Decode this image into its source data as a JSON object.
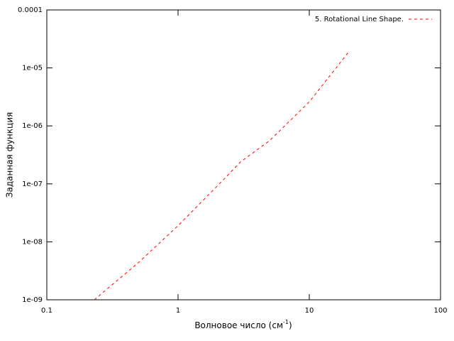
{
  "chart_data": {
    "type": "line",
    "xlabel": {
      "text": "Волновое число (см",
      "sup": "-1",
      "end": ")"
    },
    "ylabel": "Заданная функция",
    "x": [
      0.23,
      0.5,
      1,
      2,
      3,
      5,
      10,
      15,
      20
    ],
    "series": [
      {
        "name": "5. Rotational Line Shape.",
        "color": "#ff0000",
        "values": [
          1e-09,
          4.4e-09,
          1.9e-08,
          9.3e-08,
          2.4e-07,
          5.6e-07,
          2.6e-06,
          8.3e-06,
          1.9e-05
        ]
      }
    ],
    "xscale": "log",
    "yscale": "log",
    "xlim": [
      0.1,
      100
    ],
    "ylim": [
      1e-09,
      0.0001
    ],
    "xticks": [
      0.1,
      1,
      10,
      100
    ],
    "yticks": [
      {
        "value": 1e-09,
        "label": "1e-09"
      },
      {
        "value": 1e-08,
        "label": "1e-08"
      },
      {
        "value": 1e-07,
        "label": "1e-07"
      },
      {
        "value": 1e-06,
        "label": "1e-06"
      },
      {
        "value": 1e-05,
        "label": "1e-05"
      },
      {
        "value": 0.0001,
        "label": "0.0001"
      }
    ],
    "legend": "top-right"
  }
}
